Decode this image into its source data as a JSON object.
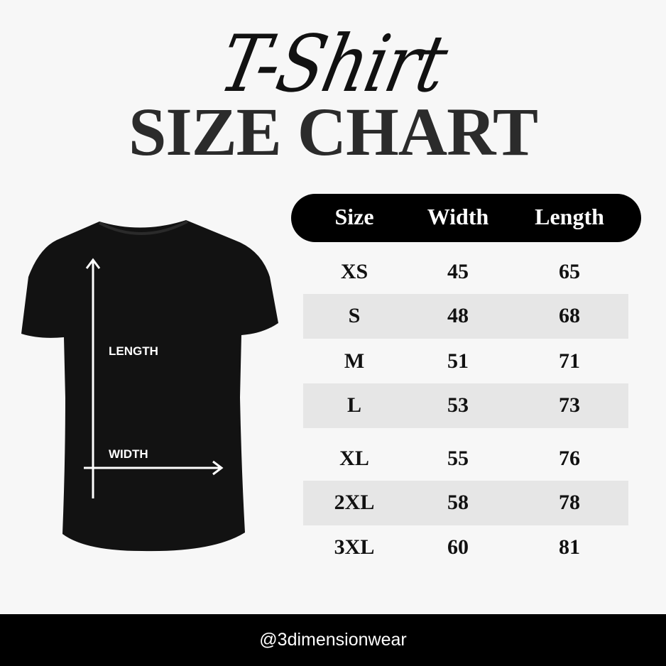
{
  "header": {
    "script_title": "T-Shirt",
    "title": "SIZE CHART"
  },
  "illustration": {
    "length_label": "LENGTH",
    "width_label": "WIDTH",
    "shirt_color": "#111111"
  },
  "chart_data": {
    "type": "table",
    "columns": [
      "Size",
      "Width",
      "Length"
    ],
    "rows": [
      [
        "XS",
        "45",
        "65"
      ],
      [
        "S",
        "48",
        "68"
      ],
      [
        "M",
        "51",
        "71"
      ],
      [
        "L",
        "53",
        "73"
      ],
      [
        "XL",
        "55",
        "76"
      ],
      [
        "2XL",
        "58",
        "78"
      ],
      [
        "3XL",
        "60",
        "81"
      ]
    ]
  },
  "footer": {
    "handle": "@3dimensionwear"
  }
}
